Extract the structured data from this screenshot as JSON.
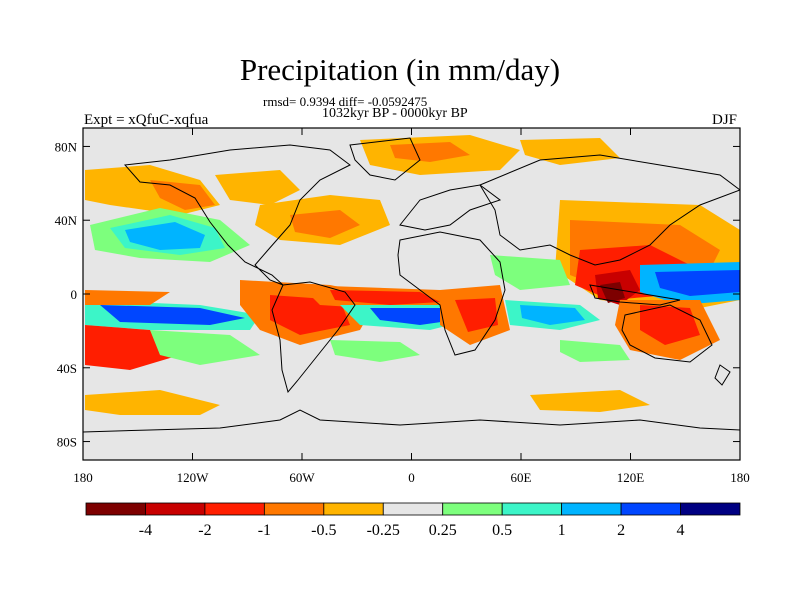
{
  "figure": {
    "title": "Precipitation (in mm/day)",
    "stats": "rmsd= 0.9394 diff= -0.0592475",
    "period": "1032kyr BP - 0000kyr BP",
    "experiment": "Expt = xQfuC-xqfua",
    "season": "DJF"
  },
  "axes": {
    "x_ticks": [
      "180",
      "120W",
      "60W",
      "0",
      "60E",
      "120E",
      "180"
    ],
    "y_ticks": [
      "80N",
      "40N",
      "0",
      "40S",
      "80S"
    ]
  },
  "colorbar": {
    "labels": [
      "-4",
      "-2",
      "-1",
      "-0.5",
      "-0.25",
      "0.25",
      "0.5",
      "1",
      "2",
      "4"
    ],
    "colors": [
      "#7d0000",
      "#c80000",
      "#ff1e00",
      "#ff7800",
      "#ffb400",
      "#e6e6e6",
      "#7dff7d",
      "#3cf5c8",
      "#00b4ff",
      "#0046ff",
      "#000082"
    ]
  },
  "palette": {
    "land_outline": "#000000",
    "background": "#e6e6e6"
  }
}
